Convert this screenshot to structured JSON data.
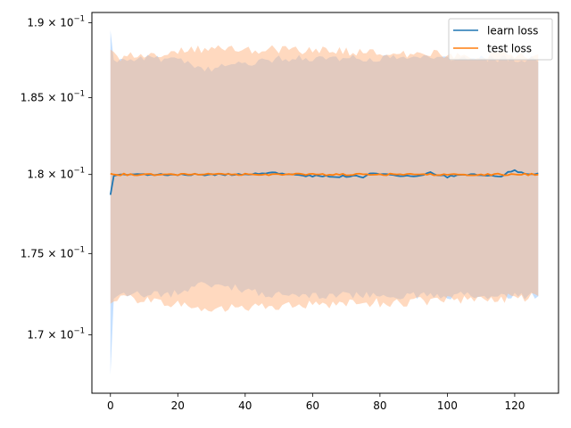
{
  "chart_data": {
    "type": "line",
    "title": "",
    "xlabel": "",
    "ylabel": "",
    "xlim": [
      -5.5,
      133
    ],
    "ylim": [
      0.1665,
      0.1907
    ],
    "ylog": true,
    "grid": false,
    "legend_position": "upper right",
    "x_ticks": [
      0,
      20,
      40,
      60,
      80,
      100,
      120
    ],
    "x_tick_labels": [
      "0",
      "20",
      "40",
      "60",
      "80",
      "100",
      "120"
    ],
    "y_ticks": [
      0.17,
      0.175,
      0.18,
      0.185,
      0.19
    ],
    "y_tick_mantissas": [
      "1.7",
      "1.75",
      "1.8",
      "1.85",
      "1.9"
    ],
    "y_tick_base": "10",
    "y_tick_exponent": "−1",
    "legend": [
      "learn loss",
      "test loss"
    ],
    "series": [
      {
        "name": "learn loss",
        "color": "#1f77b4",
        "band_color": "#8cc1ff",
        "band_opacity": 0.5,
        "x_range": [
          0,
          127
        ],
        "mean_key_points": [
          [
            0,
            0.1787
          ],
          [
            1,
            0.1799
          ],
          [
            2,
            0.17995
          ],
          [
            5,
            0.18
          ],
          [
            40,
            0.18
          ],
          [
            50,
            0.1801
          ],
          [
            60,
            0.1799
          ],
          [
            62,
            0.17995
          ],
          [
            65,
            0.17985
          ],
          [
            70,
            0.1799
          ],
          [
            75,
            0.17985
          ],
          [
            78,
            0.1801
          ],
          [
            85,
            0.17995
          ],
          [
            90,
            0.1799
          ],
          [
            95,
            0.1801
          ],
          [
            100,
            0.17985
          ],
          [
            105,
            0.18
          ],
          [
            110,
            0.18
          ],
          [
            113,
            0.1799
          ],
          [
            116,
            0.17985
          ],
          [
            118,
            0.1802
          ],
          [
            120,
            0.18025
          ],
          [
            123,
            0.1801
          ],
          [
            125,
            0.18005
          ],
          [
            127,
            0.18005
          ]
        ],
        "upper_key_points": [
          [
            0,
            0.1895
          ],
          [
            1,
            0.1875
          ],
          [
            3,
            0.1876
          ],
          [
            20,
            0.1876
          ],
          [
            27,
            0.1868
          ],
          [
            50,
            0.1876
          ],
          [
            127,
            0.1876
          ]
        ],
        "lower_key_points": [
          [
            0,
            0.1676
          ],
          [
            1,
            0.1722
          ],
          [
            3,
            0.1725
          ],
          [
            20,
            0.1725
          ],
          [
            27,
            0.1732
          ],
          [
            50,
            0.1724
          ],
          [
            127,
            0.1724
          ]
        ]
      },
      {
        "name": "test loss",
        "color": "#ff7f0e",
        "band_color": "#ffb380",
        "band_opacity": 0.5,
        "x_range": [
          0,
          127
        ],
        "mean_key_points": [
          [
            0,
            0.18005
          ],
          [
            1,
            0.18
          ],
          [
            127,
            0.18
          ]
        ],
        "upper_key_points": [
          [
            0,
            0.1882
          ],
          [
            3,
            0.1877
          ],
          [
            30,
            0.1883
          ],
          [
            127,
            0.1877
          ]
        ],
        "lower_key_points": [
          [
            0,
            0.1719
          ],
          [
            3,
            0.1723
          ],
          [
            30,
            0.1716
          ],
          [
            127,
            0.1723
          ]
        ]
      }
    ]
  }
}
